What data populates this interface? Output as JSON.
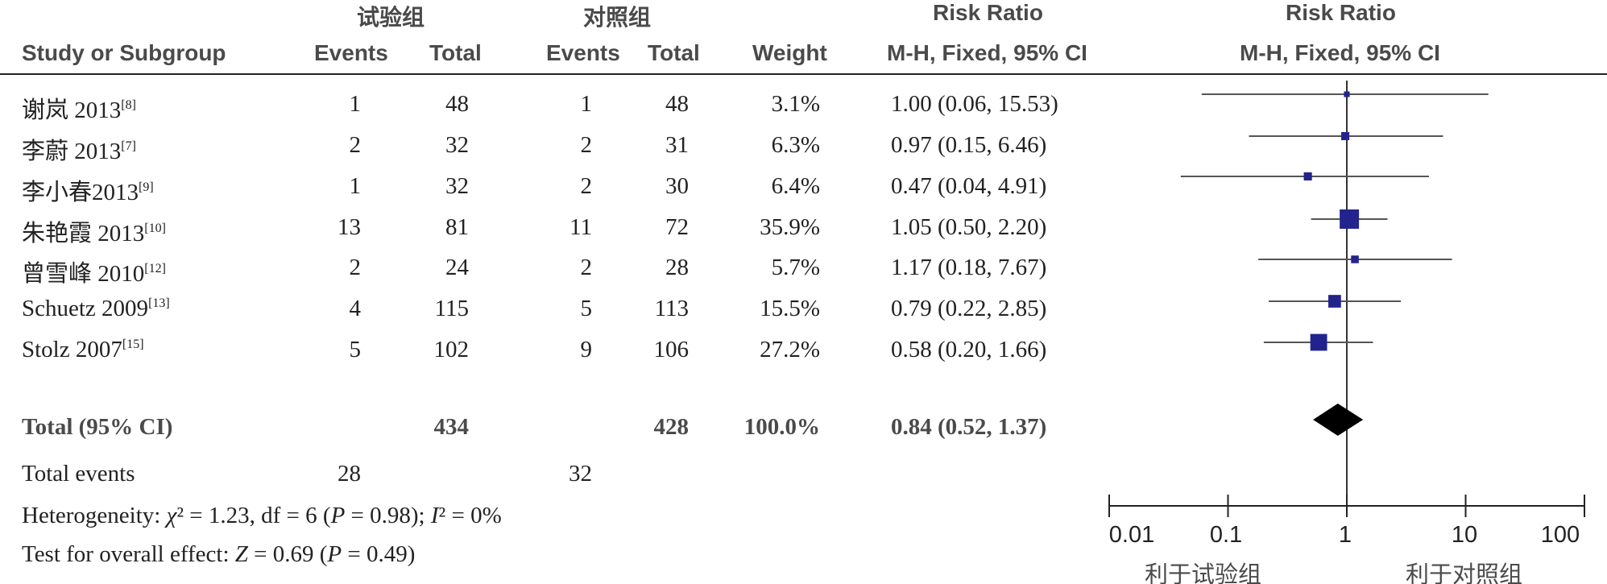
{
  "header": {
    "group_exp": "试验组",
    "group_ctrl": "对照组",
    "rr_title_1": "Risk Ratio",
    "rr_title_2": "Risk Ratio",
    "cols": {
      "study": "Study or Subgroup",
      "exp_events": "Events",
      "exp_total": "Total",
      "ctrl_events": "Events",
      "ctrl_total": "Total",
      "weight": "Weight",
      "ci_1": "M-H, Fixed, 95% CI",
      "ci_2": "M-H, Fixed, 95% CI"
    }
  },
  "studies": [
    {
      "name": "谢岚 2013",
      "ref": "[8]",
      "exp_events": "1",
      "exp_total": "48",
      "ctrl_events": "1",
      "ctrl_total": "48",
      "weight": "3.1%",
      "ci": "1.00 (0.06, 15.53)"
    },
    {
      "name": "李蔚 2013",
      "ref": "[7]",
      "exp_events": "2",
      "exp_total": "32",
      "ctrl_events": "2",
      "ctrl_total": "31",
      "weight": "6.3%",
      "ci": "0.97 (0.15, 6.46)"
    },
    {
      "name": "李小春2013",
      "ref": "[9]",
      "exp_events": "1",
      "exp_total": "32",
      "ctrl_events": "2",
      "ctrl_total": "30",
      "weight": "6.4%",
      "ci": "0.47 (0.04, 4.91)"
    },
    {
      "name": "朱艳霞 2013",
      "ref": "[10]",
      "exp_events": "13",
      "exp_total": "81",
      "ctrl_events": "11",
      "ctrl_total": "72",
      "weight": "35.9%",
      "ci": "1.05 (0.50, 2.20)"
    },
    {
      "name": "曾雪峰 2010",
      "ref": "[12]",
      "exp_events": "2",
      "exp_total": "24",
      "ctrl_events": "2",
      "ctrl_total": "28",
      "weight": "5.7%",
      "ci": "1.17 (0.18, 7.67)"
    },
    {
      "name": "Schuetz 2009",
      "ref": "[13]",
      "exp_events": "4",
      "exp_total": "115",
      "ctrl_events": "5",
      "ctrl_total": "113",
      "weight": "15.5%",
      "ci": "0.79 (0.22, 2.85)"
    },
    {
      "name": "Stolz 2007",
      "ref": "[15]",
      "exp_events": "5",
      "exp_total": "102",
      "ctrl_events": "9",
      "ctrl_total": "106",
      "weight": "27.2%",
      "ci": "0.58 (0.20, 1.66)"
    }
  ],
  "total": {
    "label": "Total (95% CI)",
    "exp_total": "434",
    "ctrl_total": "428",
    "weight": "100.0%",
    "ci": "0.84 (0.52, 1.37)"
  },
  "total_events": {
    "label": "Total events",
    "exp": "28",
    "ctrl": "32"
  },
  "heterogeneity": {
    "label": "Heterogeneity: ",
    "chi_sym": "χ",
    "chi_rest": "² = 1.23, df = 6 (",
    "p_sym": "P",
    "p_rest": " = 0.98); ",
    "i_sym": "I",
    "i_rest": "² = 0%"
  },
  "overall": {
    "label": "Test for overall effect: ",
    "z_sym": "Z",
    "z_rest": " = 0.69 (",
    "p_sym": "P",
    "p_rest": " = 0.49)"
  },
  "axis": {
    "ticks": [
      "0.01",
      "0.1",
      "1",
      "10",
      "100"
    ],
    "favours_left": "利于试验组",
    "favours_right": "利于对照组"
  },
  "colors": {
    "marker": "#23238e",
    "diamond": "#000000",
    "line": "#555555"
  },
  "chart_data": {
    "type": "forest",
    "xscale": "log",
    "xlim": [
      0.01,
      100
    ],
    "ticks": [
      0.01,
      0.1,
      1,
      10,
      100
    ],
    "series": [
      {
        "rr": 1.0,
        "lo": 0.06,
        "hi": 15.53,
        "weight": 3.1
      },
      {
        "rr": 0.97,
        "lo": 0.15,
        "hi": 6.46,
        "weight": 6.3
      },
      {
        "rr": 0.47,
        "lo": 0.04,
        "hi": 4.91,
        "weight": 6.4
      },
      {
        "rr": 1.05,
        "lo": 0.5,
        "hi": 2.2,
        "weight": 35.9
      },
      {
        "rr": 1.17,
        "lo": 0.18,
        "hi": 7.67,
        "weight": 5.7
      },
      {
        "rr": 0.79,
        "lo": 0.22,
        "hi": 2.85,
        "weight": 15.5
      },
      {
        "rr": 0.58,
        "lo": 0.2,
        "hi": 1.66,
        "weight": 27.2
      }
    ],
    "pooled": {
      "rr": 0.84,
      "lo": 0.52,
      "hi": 1.37
    }
  }
}
